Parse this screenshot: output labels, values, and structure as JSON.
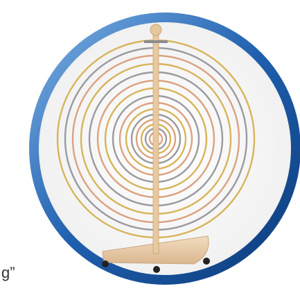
{
  "caption_fragment": "g”"
}
